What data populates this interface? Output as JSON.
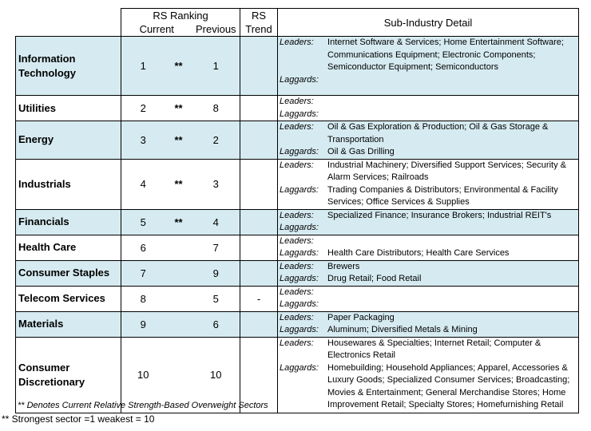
{
  "header": {
    "rs_ranking": "RS Ranking",
    "rs_trend_line1": "RS",
    "current": "Current",
    "previous": "Previous",
    "trend": "Trend",
    "detail": "Sub-Industry Detail"
  },
  "labels": {
    "leaders": "Leaders:",
    "laggards": "Laggards:"
  },
  "rows": [
    {
      "sector": "Information Technology",
      "current": "1",
      "star": "**",
      "previous": "1",
      "trend": "",
      "leaders": "Internet Software & Services; Home Entertainment Software; Communications Equipment; Electronic Components; Semiconductor Equipment; Semiconductors",
      "laggards": ""
    },
    {
      "sector": "Utilities",
      "current": "2",
      "star": "**",
      "previous": "8",
      "trend": "",
      "leaders": "",
      "laggards": ""
    },
    {
      "sector": "Energy",
      "current": "3",
      "star": "**",
      "previous": "2",
      "trend": "",
      "leaders": "Oil & Gas Exploration & Production; Oil & Gas Storage & Transportation",
      "laggards": "Oil & Gas Drilling"
    },
    {
      "sector": "Industrials",
      "current": "4",
      "star": "**",
      "previous": "3",
      "trend": "",
      "leaders": "Industrial Machinery; Diversified Support Services; Security & Alarm Services; Railroads",
      "laggards": "Trading Companies & Distributors; Environmental & Facility Services; Office Services & Supplies"
    },
    {
      "sector": "Financials",
      "current": "5",
      "star": "**",
      "previous": "4",
      "trend": "",
      "leaders": "Specialized Finance; Insurance Brokers; Industrial REIT's",
      "laggards": ""
    },
    {
      "sector": "Health Care",
      "current": "6",
      "star": "",
      "previous": "7",
      "trend": "",
      "leaders": "",
      "laggards": "Health Care Distributors; Health Care Services"
    },
    {
      "sector": "Consumer Staples",
      "current": "7",
      "star": "",
      "previous": "9",
      "trend": "",
      "leaders": "Brewers",
      "laggards": "Drug Retail; Food Retail"
    },
    {
      "sector": "Telecom Services",
      "current": "8",
      "star": "",
      "previous": "5",
      "trend": "-",
      "leaders": "",
      "laggards": ""
    },
    {
      "sector": "Materials",
      "current": "9",
      "star": "",
      "previous": "6",
      "trend": "",
      "leaders": "Paper Packaging",
      "laggards": "Aluminum; Diversified Metals & Mining"
    },
    {
      "sector": "Consumer Discretionary",
      "current": "10",
      "star": "",
      "previous": "10",
      "trend": "",
      "leaders": "Housewares & Specialties; Internet Retail; Computer & Electronics Retail",
      "laggards": "Homebuilding; Household Appliances; Apparel, Accessories & Luxury Goods; Specialized Consumer Services; Broadcasting; Movies & Entertainment; General Merchandise Stores; Home Improvement Retail; Specialty Stores; Homefurnishing Retail"
    }
  ],
  "footnotes": {
    "note1": "** Denotes Current Relative Strength-Based Overweight Sectors",
    "note2": "** Strongest sector =1 weakest = 10"
  },
  "colors": {
    "shade": "#d6ebf1"
  }
}
